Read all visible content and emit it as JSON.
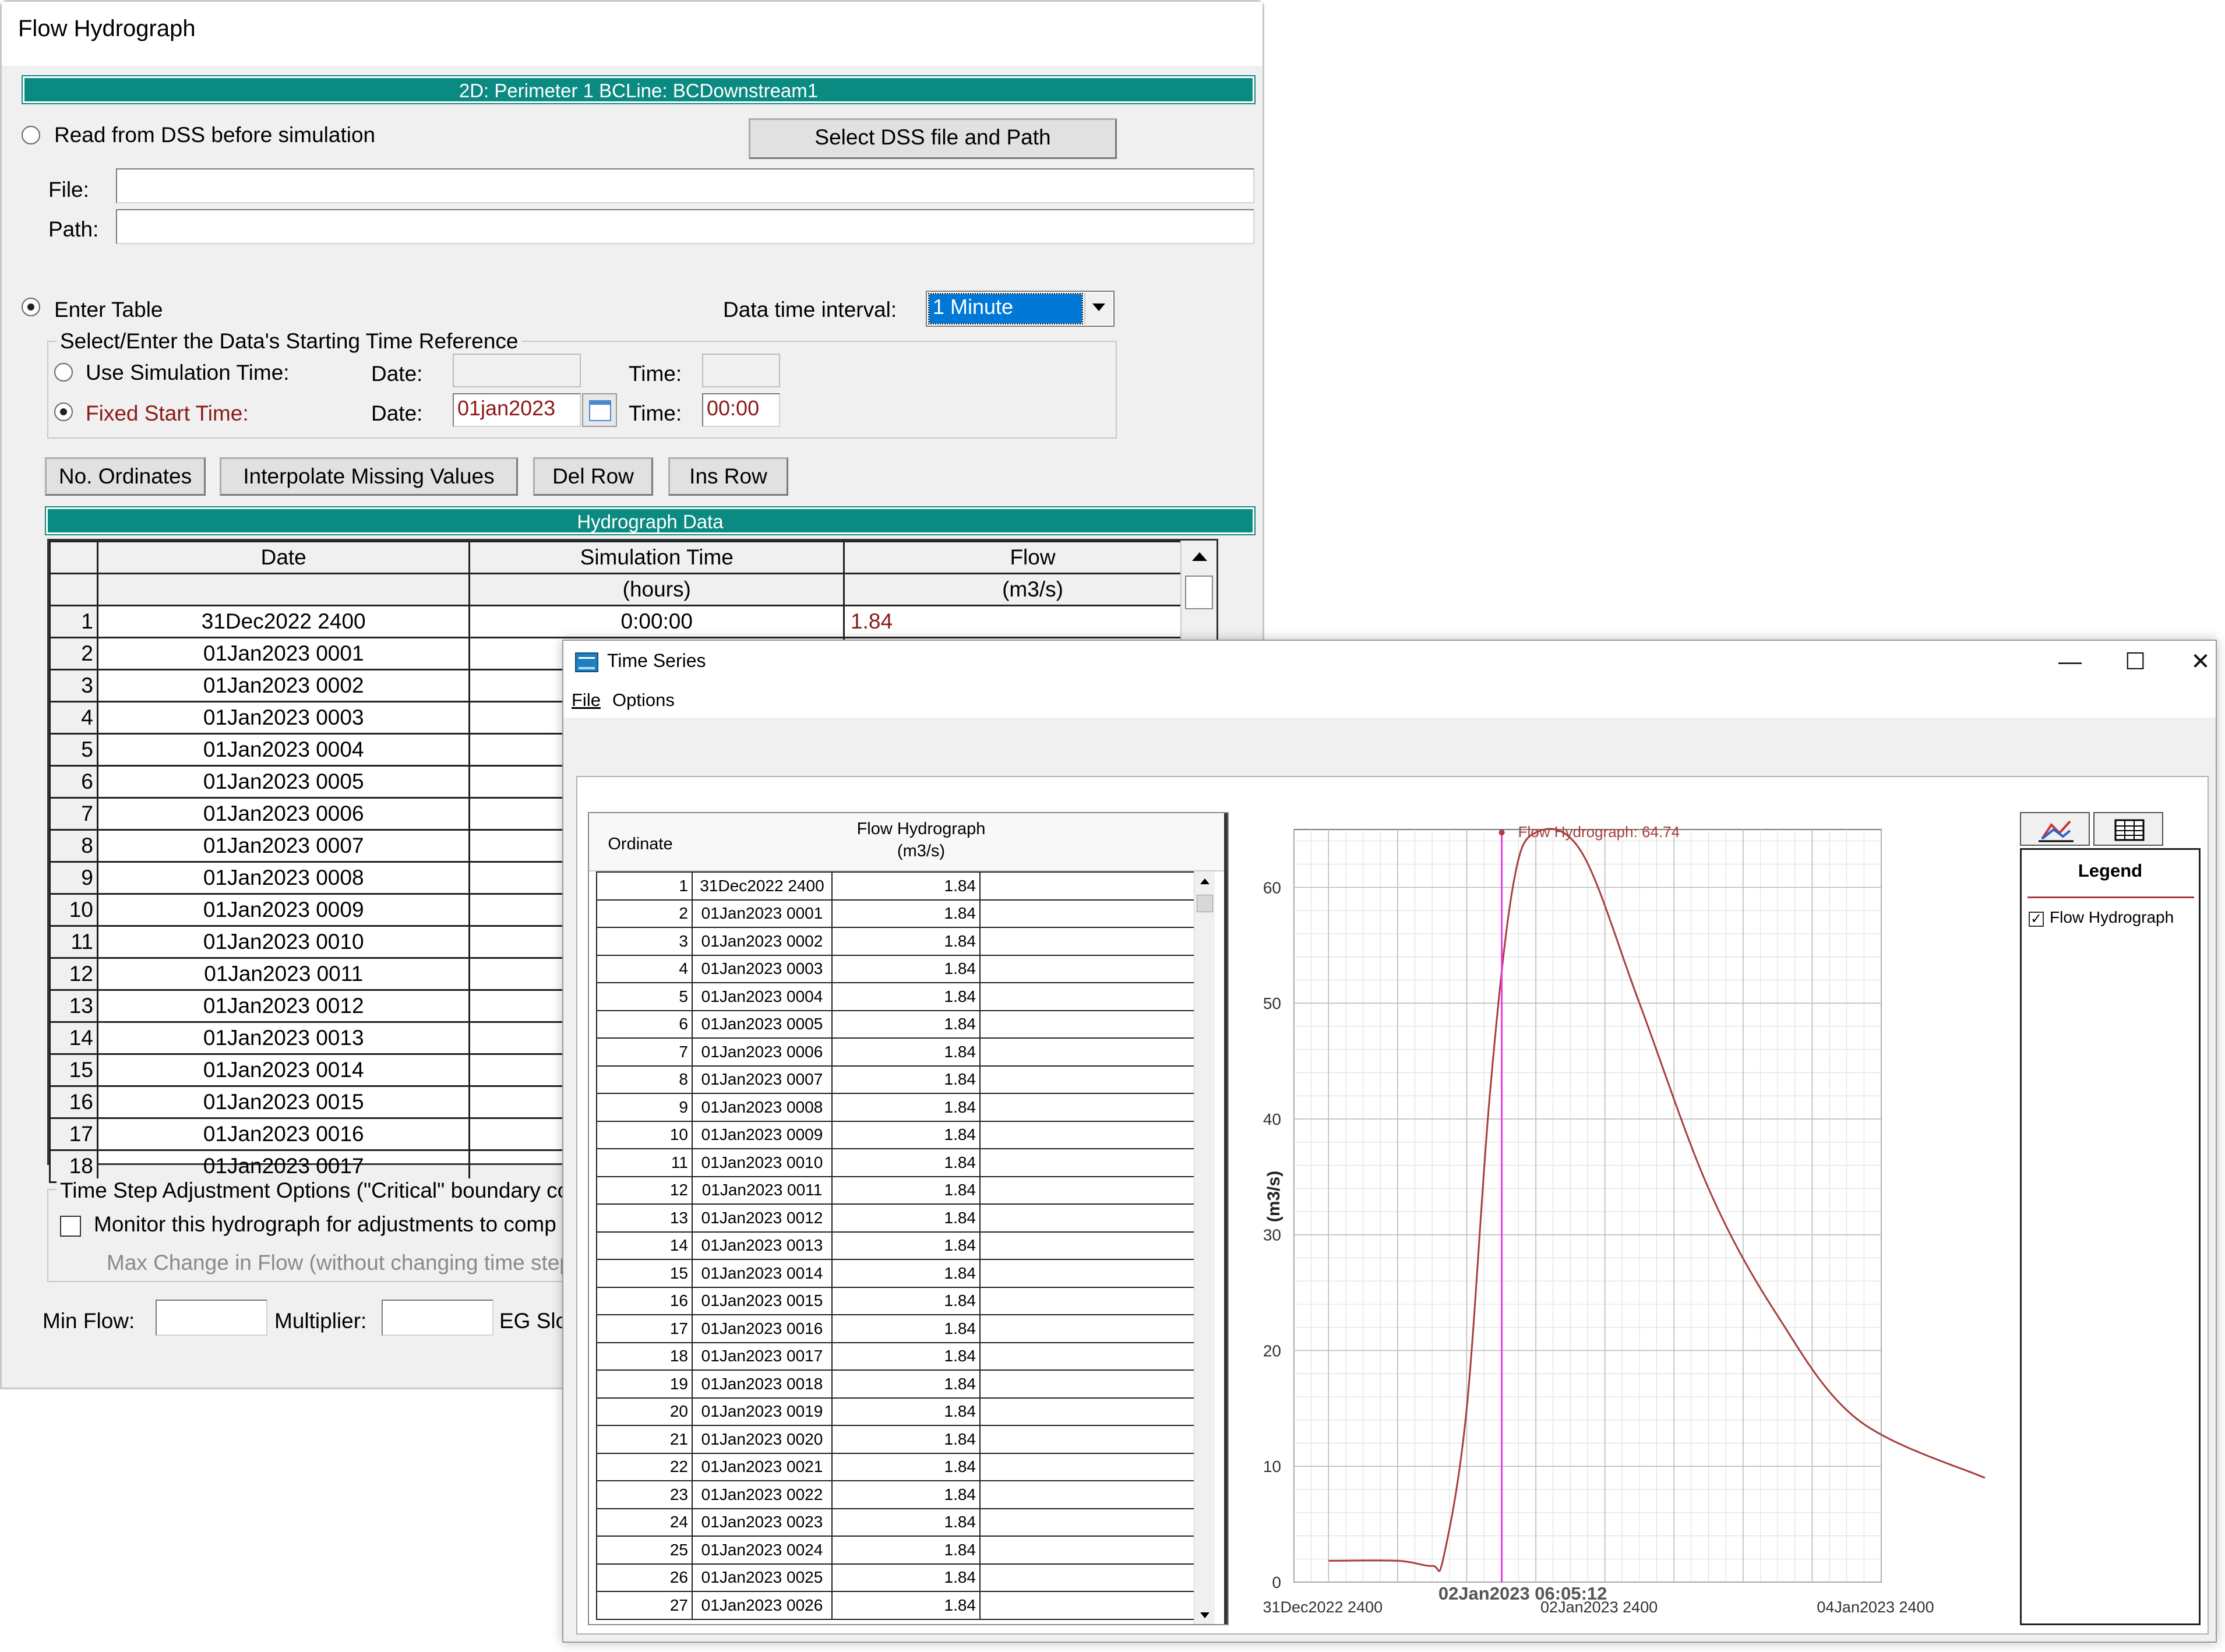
{
  "fh": {
    "title": "Flow Hydrograph",
    "banner": "2D: Perimeter 1 BCLine: BCDownstream1",
    "read_dss_label": "Read from DSS before simulation",
    "select_dss_button": "Select DSS file and Path",
    "file_label": "File:",
    "path_label": "Path:",
    "file_value": "",
    "path_value": "",
    "enter_table_label": "Enter Table",
    "interval_label": "Data time interval:",
    "interval_value": "1 Minute",
    "group_title": "Select/Enter the Data's Starting Time Reference",
    "use_sim_time_label": "Use Simulation Time:",
    "fixed_start_label": "Fixed Start Time:",
    "date_label": "Date:",
    "time_label": "Time:",
    "sim_date_value": "",
    "sim_time_value": "",
    "fixed_date_value": "01jan2023",
    "fixed_time_value": "00:00",
    "buttons": {
      "no_ordinates": "No. Ordinates",
      "interpolate": "Interpolate Missing Values",
      "del_row": "Del Row",
      "ins_row": "Ins Row"
    },
    "table_title": "Hydrograph Data",
    "columns": [
      "Date",
      "Simulation Time",
      "Flow"
    ],
    "units": [
      "",
      "(hours)",
      "(m3/s)"
    ],
    "rows": [
      {
        "n": "1",
        "date": "31Dec2022 2400",
        "sim": "0:00:00",
        "flow": "1.84"
      },
      {
        "n": "2",
        "date": "01Jan2023 0001",
        "sim": "",
        "flow": ""
      },
      {
        "n": "3",
        "date": "01Jan2023 0002",
        "sim": "",
        "flow": ""
      },
      {
        "n": "4",
        "date": "01Jan2023 0003",
        "sim": "",
        "flow": ""
      },
      {
        "n": "5",
        "date": "01Jan2023 0004",
        "sim": "",
        "flow": ""
      },
      {
        "n": "6",
        "date": "01Jan2023 0005",
        "sim": "",
        "flow": ""
      },
      {
        "n": "7",
        "date": "01Jan2023 0006",
        "sim": "",
        "flow": ""
      },
      {
        "n": "8",
        "date": "01Jan2023 0007",
        "sim": "",
        "flow": ""
      },
      {
        "n": "9",
        "date": "01Jan2023 0008",
        "sim": "",
        "flow": ""
      },
      {
        "n": "10",
        "date": "01Jan2023 0009",
        "sim": "",
        "flow": ""
      },
      {
        "n": "11",
        "date": "01Jan2023 0010",
        "sim": "",
        "flow": ""
      },
      {
        "n": "12",
        "date": "01Jan2023 0011",
        "sim": "",
        "flow": ""
      },
      {
        "n": "13",
        "date": "01Jan2023 0012",
        "sim": "",
        "flow": ""
      },
      {
        "n": "14",
        "date": "01Jan2023 0013",
        "sim": "",
        "flow": ""
      },
      {
        "n": "15",
        "date": "01Jan2023 0014",
        "sim": "",
        "flow": ""
      },
      {
        "n": "16",
        "date": "01Jan2023 0015",
        "sim": "",
        "flow": ""
      },
      {
        "n": "17",
        "date": "01Jan2023 0016",
        "sim": "",
        "flow": ""
      },
      {
        "n": "18",
        "date": "01Jan2023 0017",
        "sim": "",
        "flow": ""
      }
    ],
    "ts_group_title": "Time Step Adjustment Options (\"Critical\" boundary co",
    "monitor_label": "Monitor this hydrograph for adjustments to comp",
    "max_change_label": "Max Change in Flow (without changing time step",
    "min_flow_label": "Min Flow:",
    "multiplier_label": "Multiplier:",
    "eg_slope_label": "EG Slop",
    "min_flow_value": "",
    "multiplier_value": ""
  },
  "ts": {
    "title": "Time Series",
    "window_controls": [
      "—",
      "☐",
      "✕"
    ],
    "menu": [
      "File",
      "Options"
    ],
    "table": {
      "header_ordinate": "Ordinate",
      "header_flow": "Flow Hydrograph",
      "header_units": "(m3/s)",
      "rows": [
        {
          "n": "1",
          "date": "31Dec2022 2400",
          "v": "1.84"
        },
        {
          "n": "2",
          "date": "01Jan2023 0001",
          "v": "1.84"
        },
        {
          "n": "3",
          "date": "01Jan2023 0002",
          "v": "1.84"
        },
        {
          "n": "4",
          "date": "01Jan2023 0003",
          "v": "1.84"
        },
        {
          "n": "5",
          "date": "01Jan2023 0004",
          "v": "1.84"
        },
        {
          "n": "6",
          "date": "01Jan2023 0005",
          "v": "1.84"
        },
        {
          "n": "7",
          "date": "01Jan2023 0006",
          "v": "1.84"
        },
        {
          "n": "8",
          "date": "01Jan2023 0007",
          "v": "1.84"
        },
        {
          "n": "9",
          "date": "01Jan2023 0008",
          "v": "1.84"
        },
        {
          "n": "10",
          "date": "01Jan2023 0009",
          "v": "1.84"
        },
        {
          "n": "11",
          "date": "01Jan2023 0010",
          "v": "1.84"
        },
        {
          "n": "12",
          "date": "01Jan2023 0011",
          "v": "1.84"
        },
        {
          "n": "13",
          "date": "01Jan2023 0012",
          "v": "1.84"
        },
        {
          "n": "14",
          "date": "01Jan2023 0013",
          "v": "1.84"
        },
        {
          "n": "15",
          "date": "01Jan2023 0014",
          "v": "1.84"
        },
        {
          "n": "16",
          "date": "01Jan2023 0015",
          "v": "1.84"
        },
        {
          "n": "17",
          "date": "01Jan2023 0016",
          "v": "1.84"
        },
        {
          "n": "18",
          "date": "01Jan2023 0017",
          "v": "1.84"
        },
        {
          "n": "19",
          "date": "01Jan2023 0018",
          "v": "1.84"
        },
        {
          "n": "20",
          "date": "01Jan2023 0019",
          "v": "1.84"
        },
        {
          "n": "21",
          "date": "01Jan2023 0020",
          "v": "1.84"
        },
        {
          "n": "22",
          "date": "01Jan2023 0021",
          "v": "1.84"
        },
        {
          "n": "23",
          "date": "01Jan2023 0022",
          "v": "1.84"
        },
        {
          "n": "24",
          "date": "01Jan2023 0023",
          "v": "1.84"
        },
        {
          "n": "25",
          "date": "01Jan2023 0024",
          "v": "1.84"
        },
        {
          "n": "26",
          "date": "01Jan2023 0025",
          "v": "1.84"
        },
        {
          "n": "27",
          "date": "01Jan2023 0026",
          "v": "1.84"
        }
      ]
    },
    "legend": {
      "title": "Legend",
      "item": "Flow Hydrograph",
      "checked": "✓"
    },
    "icons": [
      "chart-icon",
      "table-icon"
    ],
    "colors": {
      "series": "#a83e3e",
      "cursor": "#e83ce8",
      "banner": "#0a8a80"
    }
  },
  "chart_data": {
    "type": "line",
    "title": "",
    "xlabel": "",
    "ylabel": "(m3/s)",
    "ylim": [
      0,
      65
    ],
    "yticks": [
      0,
      10,
      20,
      30,
      40,
      50,
      60
    ],
    "xlim": [
      "31Dec2022 1800",
      "05Jan2023 0000"
    ],
    "xtick_labels": [
      "31Dec2022 2400",
      "02Jan2023 2400",
      "04Jan2023 2400"
    ],
    "grid": true,
    "cursor_label": "02Jan2023 06:05:12",
    "cursor_x": "02Jan2023 06:05:12",
    "annotation": "Flow Hydrograph: 64.74",
    "series": [
      {
        "name": "Flow Hydrograph",
        "color": "#a83e3e",
        "x": [
          "31Dec2022 2400",
          "01Jan2023 1200",
          "01Jan2023 1800",
          "01Jan2023 2000",
          "01Jan2023 2400",
          "02Jan2023 0400",
          "02Jan2023 0800",
          "02Jan2023 1200",
          "02Jan2023 2000",
          "03Jan2023 0600",
          "03Jan2023 1800",
          "04Jan2023 0600",
          "04Jan2023 2000",
          "05Jan2023 1800"
        ],
        "values": [
          1.84,
          1.84,
          1.4,
          2.2,
          15.0,
          42.0,
          60.0,
          64.74,
          63.0,
          50.0,
          34.0,
          23.0,
          14.0,
          9.0
        ]
      }
    ]
  }
}
